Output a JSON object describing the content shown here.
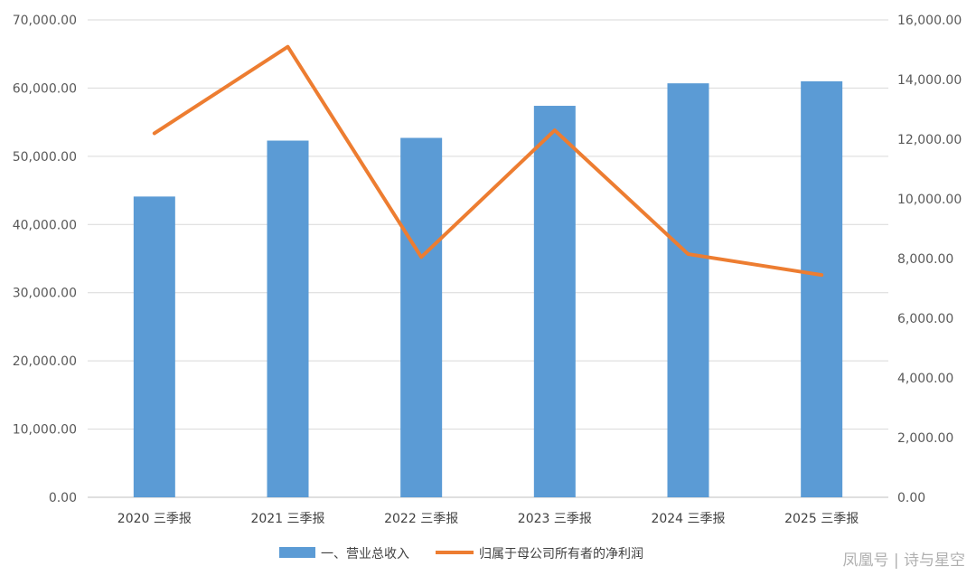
{
  "chart_data": {
    "type": "bar",
    "categories": [
      "2020 三季报",
      "2021 三季报",
      "2022 三季报",
      "2023 三季报",
      "2024 三季报",
      "2025 三季报"
    ],
    "series": [
      {
        "name": "一、营业总收入",
        "type": "bar",
        "axis": "left",
        "color": "#5b9bd5",
        "values": [
          44100,
          52300,
          52700,
          57400,
          60700,
          61000
        ]
      },
      {
        "name": "归属于母公司所有者的净利润",
        "type": "line",
        "axis": "right",
        "color": "#ed7d31",
        "values": [
          12200,
          15100,
          8050,
          12300,
          8150,
          7450
        ]
      }
    ],
    "y_left": {
      "ylim": [
        0,
        70000
      ],
      "ticks": [
        "0.00",
        "10,000.00",
        "20,000.00",
        "30,000.00",
        "40,000.00",
        "50,000.00",
        "60,000.00",
        "70,000.00"
      ]
    },
    "y_right": {
      "ylim": [
        0,
        16000
      ],
      "ticks": [
        "0.00",
        "2,000.00",
        "4,000.00",
        "6,000.00",
        "8,000.00",
        "10,000.00",
        "12,000.00",
        "14,000.00",
        "16,000.00"
      ]
    },
    "grid": true,
    "legend": "bottom-center",
    "title": "",
    "xlabel": "",
    "ylabel": ""
  },
  "watermark": {
    "text": "凤凰号 | 诗与星空"
  }
}
